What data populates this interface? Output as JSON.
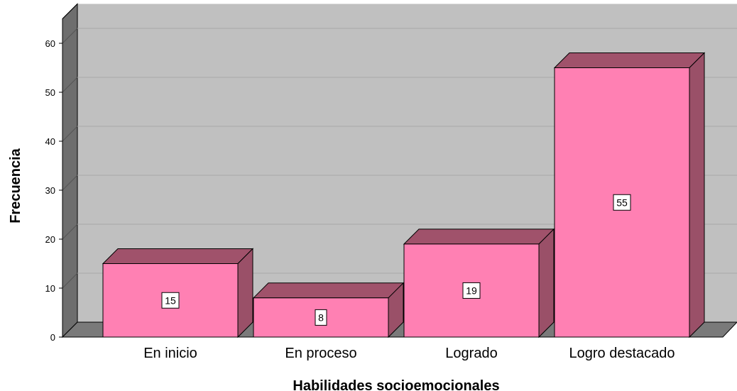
{
  "chart_data": {
    "type": "bar",
    "style": "3d",
    "title": "",
    "xlabel": "Habilidades socioemocionales",
    "ylabel": "Frecuencia",
    "categories": [
      "En inicio",
      "En proceso",
      "Logrado",
      "Logro destacado"
    ],
    "values": [
      15,
      8,
      19,
      55
    ],
    "data_labels": [
      "15",
      "8",
      "19",
      "55"
    ],
    "ylim": [
      0,
      65
    ],
    "yticks": [
      0,
      10,
      20,
      30,
      40,
      50,
      60
    ],
    "grid": true,
    "legend": "none",
    "colors": {
      "bar_front": "#ff80b3",
      "bar_side": "#9a5068",
      "bar_top": "#a0526b",
      "plot_back": "#c0c0c0",
      "plot_wall": "#6e6e6e",
      "floor": "#7a7a7a",
      "gridline": "#a8a8a8"
    }
  }
}
